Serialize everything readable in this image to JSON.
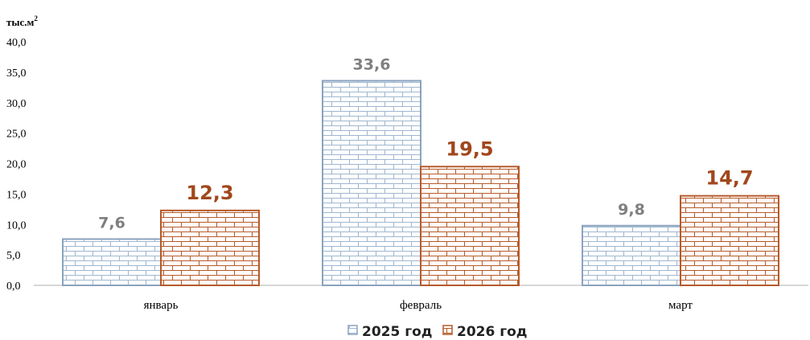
{
  "chart_data": {
    "type": "bar",
    "unit_label": "тыс.м",
    "unit_superscript": "2",
    "categories": [
      "январь",
      "февраль",
      "март"
    ],
    "series": [
      {
        "name": "2025 год",
        "values": [
          7.6,
          33.6,
          9.8
        ],
        "labels": [
          "7,6",
          "33,6",
          "9,8"
        ],
        "color": "#9fb6cf",
        "label_color": "#7f7f7f"
      },
      {
        "name": "2026 год",
        "values": [
          12.3,
          19.5,
          14.7
        ],
        "labels": [
          "12,3",
          "19,5",
          "14,7"
        ],
        "color": "#b65a2a",
        "label_color": "#a0471c"
      }
    ],
    "yticks": [
      "0,0",
      "5,0",
      "10,0",
      "15,0",
      "20,0",
      "25,0",
      "30,0",
      "35,0",
      "40,0"
    ],
    "ylim": [
      0,
      40
    ],
    "grid": false,
    "legend_position": "bottom"
  }
}
